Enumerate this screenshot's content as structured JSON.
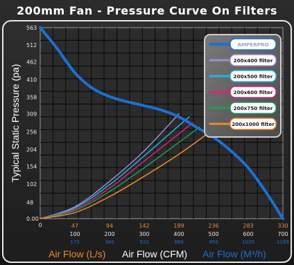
{
  "title": "200mm Fan - Pressure Curve On Filters",
  "colors": {
    "background": "#1f1f1f",
    "plot_bg": "#2a2a2a",
    "grid": "#000000",
    "frame": "#e8e8e8",
    "title_text": "#ffffff",
    "orange": "#f0882a",
    "blue": "#1e6fd0"
  },
  "chart_data": {
    "type": "line",
    "title": "200mm Fan - Pressure Curve On Filters",
    "ylabel": "Typical Static Pressure  (pa)",
    "xlabel_ls": "Air Flow (L/s)",
    "xlabel_cfm": "Air Flow (CFM)",
    "xlabel_m3h": "Air Flow (M³/h)",
    "y_ticks": [
      "563",
      "512",
      "462",
      "410",
      "358",
      "309",
      "256",
      "204",
      "154",
      "102",
      "48",
      "0.00"
    ],
    "y_tick_values": [
      563,
      512,
      462,
      410,
      358,
      309,
      256,
      204,
      154,
      102,
      48,
      0
    ],
    "x_ticks_ls": [
      "47",
      "94",
      "142",
      "189",
      "236",
      "283",
      "330"
    ],
    "x_ticks_cfm": [
      "0",
      "100",
      "200",
      "300",
      "400",
      "500",
      "600",
      "700"
    ],
    "x_ticks_m3h": [
      "170",
      "340",
      "510",
      "680",
      "850",
      "1020",
      "1189"
    ],
    "x_tick_values_cfm": [
      0,
      100,
      200,
      300,
      400,
      500,
      600,
      700
    ],
    "xlim": [
      0,
      700
    ],
    "ylim": [
      0,
      563
    ],
    "grid": true,
    "legend_position": "top-right",
    "series": [
      {
        "name": "AMPERPRO",
        "color": "#1e6fd0",
        "width": 4,
        "x": [
          0,
          50,
          100,
          150,
          200,
          250,
          300,
          350,
          400,
          450,
          500,
          550,
          600,
          650,
          700
        ],
        "y": [
          563,
          500,
          430,
          385,
          360,
          345,
          333,
          320,
          300,
          270,
          240,
          200,
          150,
          80,
          0
        ]
      },
      {
        "name": "200x400 filter",
        "color": "#9a8fd0",
        "width": 1.5,
        "x": [
          0,
          100,
          200,
          300,
          400
        ],
        "y": [
          0,
          35,
          110,
          200,
          309
        ]
      },
      {
        "name": "200x500 filter",
        "color": "#22b6e8",
        "width": 1.5,
        "x": [
          0,
          100,
          200,
          300,
          410,
          430
        ],
        "y": [
          0,
          32,
          100,
          185,
          283,
          300
        ]
      },
      {
        "name": "200x600 filter",
        "color": "#e0207a",
        "width": 1.5,
        "x": [
          0,
          100,
          200,
          300,
          400,
          440
        ],
        "y": [
          0,
          28,
          90,
          170,
          250,
          283
        ]
      },
      {
        "name": "200x750 filter",
        "color": "#1f9c55",
        "width": 1.5,
        "x": [
          0,
          100,
          200,
          300,
          400,
          460
        ],
        "y": [
          0,
          24,
          80,
          150,
          225,
          270
        ]
      },
      {
        "name": "200x1000 filter",
        "color": "#f0882a",
        "width": 1.5,
        "x": [
          0,
          100,
          200,
          300,
          400,
          490
        ],
        "y": [
          0,
          18,
          65,
          125,
          190,
          256
        ]
      }
    ]
  }
}
